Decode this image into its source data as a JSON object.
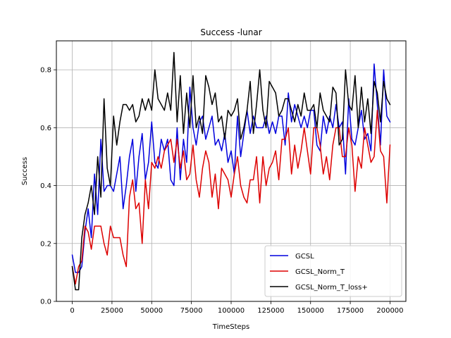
{
  "chart_data": {
    "type": "line",
    "title": "Success -lunar",
    "xlabel": "TimeSteps",
    "ylabel": "Success",
    "xlim": [
      -10000,
      210000
    ],
    "ylim": [
      0.0,
      0.9
    ],
    "xticks": [
      0,
      25000,
      50000,
      75000,
      100000,
      125000,
      150000,
      175000,
      200000
    ],
    "xtick_labels": [
      "0",
      "25000",
      "50000",
      "75000",
      "100000",
      "125000",
      "150000",
      "175000",
      "200000"
    ],
    "yticks": [
      0.0,
      0.2,
      0.4,
      0.6,
      0.8
    ],
    "ytick_labels": [
      "0.0",
      "0.2",
      "0.4",
      "0.6",
      "0.8"
    ],
    "grid": true,
    "legend_position": "lower-right",
    "x": [
      0,
      2000,
      4000,
      6000,
      8000,
      10000,
      12000,
      14000,
      16000,
      18000,
      20000,
      22000,
      24000,
      26000,
      28000,
      30000,
      32000,
      34000,
      36000,
      38000,
      40000,
      42000,
      44000,
      46000,
      48000,
      50000,
      52000,
      54000,
      56000,
      58000,
      60000,
      62000,
      64000,
      66000,
      68000,
      70000,
      72000,
      74000,
      76000,
      78000,
      80000,
      82000,
      84000,
      86000,
      88000,
      90000,
      92000,
      94000,
      96000,
      98000,
      100000,
      102000,
      104000,
      106000,
      108000,
      110000,
      112000,
      114000,
      116000,
      118000,
      120000,
      122000,
      124000,
      126000,
      128000,
      130000,
      132000,
      134000,
      136000,
      138000,
      140000,
      142000,
      144000,
      146000,
      148000,
      150000,
      152000,
      154000,
      156000,
      158000,
      160000,
      162000,
      164000,
      166000,
      168000,
      170000,
      172000,
      174000,
      176000,
      178000,
      180000,
      182000,
      184000,
      186000,
      188000,
      190000,
      192000,
      194000,
      196000,
      198000,
      200000
    ],
    "series": [
      {
        "name": "GCSL",
        "color": "#0000dd",
        "values": [
          0.16,
          0.1,
          0.1,
          0.12,
          0.24,
          0.32,
          0.22,
          0.44,
          0.3,
          0.56,
          0.38,
          0.4,
          0.4,
          0.38,
          0.44,
          0.5,
          0.32,
          0.4,
          0.5,
          0.56,
          0.38,
          0.5,
          0.58,
          0.42,
          0.48,
          0.62,
          0.48,
          0.46,
          0.56,
          0.52,
          0.56,
          0.42,
          0.4,
          0.6,
          0.42,
          0.56,
          0.48,
          0.74,
          0.6,
          0.54,
          0.62,
          0.64,
          0.56,
          0.6,
          0.64,
          0.54,
          0.56,
          0.52,
          0.58,
          0.48,
          0.52,
          0.44,
          0.64,
          0.5,
          0.58,
          0.66,
          0.58,
          0.64,
          0.6,
          0.6,
          0.6,
          0.64,
          0.58,
          0.62,
          0.58,
          0.64,
          0.64,
          0.54,
          0.72,
          0.62,
          0.68,
          0.64,
          0.6,
          0.64,
          0.6,
          0.66,
          0.66,
          0.54,
          0.52,
          0.64,
          0.58,
          0.64,
          0.6,
          0.68,
          0.6,
          0.62,
          0.44,
          0.7,
          0.56,
          0.54,
          0.6,
          0.66,
          0.56,
          0.58,
          0.52,
          0.82,
          0.68,
          0.54,
          0.8,
          0.64,
          0.62
        ]
      },
      {
        "name": "GCSL_Norm_T",
        "color": "#dd0000",
        "values": [
          0.12,
          0.06,
          0.12,
          0.14,
          0.26,
          0.24,
          0.18,
          0.26,
          0.26,
          0.26,
          0.2,
          0.16,
          0.26,
          0.22,
          0.22,
          0.22,
          0.16,
          0.12,
          0.36,
          0.42,
          0.32,
          0.34,
          0.2,
          0.42,
          0.32,
          0.48,
          0.46,
          0.5,
          0.46,
          0.52,
          0.54,
          0.56,
          0.48,
          0.56,
          0.46,
          0.52,
          0.42,
          0.44,
          0.54,
          0.42,
          0.36,
          0.46,
          0.52,
          0.48,
          0.36,
          0.44,
          0.32,
          0.46,
          0.44,
          0.42,
          0.36,
          0.44,
          0.5,
          0.4,
          0.36,
          0.34,
          0.42,
          0.42,
          0.5,
          0.34,
          0.5,
          0.4,
          0.46,
          0.48,
          0.52,
          0.42,
          0.56,
          0.56,
          0.6,
          0.44,
          0.54,
          0.46,
          0.52,
          0.6,
          0.52,
          0.44,
          0.6,
          0.6,
          0.54,
          0.44,
          0.5,
          0.42,
          0.54,
          0.6,
          0.6,
          0.5,
          0.5,
          0.6,
          0.54,
          0.38,
          0.5,
          0.46,
          0.6,
          0.54,
          0.48,
          0.5,
          0.66,
          0.52,
          0.5,
          0.34,
          0.54
        ]
      },
      {
        "name": "GCSL_Norm_T_loss+",
        "color": "#000000",
        "values": [
          0.12,
          0.04,
          0.04,
          0.22,
          0.3,
          0.34,
          0.4,
          0.3,
          0.5,
          0.36,
          0.7,
          0.46,
          0.4,
          0.64,
          0.54,
          0.62,
          0.68,
          0.68,
          0.66,
          0.68,
          0.62,
          0.64,
          0.7,
          0.66,
          0.7,
          0.66,
          0.8,
          0.7,
          0.68,
          0.66,
          0.72,
          0.66,
          0.86,
          0.62,
          0.78,
          0.58,
          0.72,
          0.6,
          0.78,
          0.6,
          0.64,
          0.58,
          0.78,
          0.74,
          0.68,
          0.72,
          0.62,
          0.64,
          0.56,
          0.66,
          0.64,
          0.66,
          0.7,
          0.56,
          0.6,
          0.66,
          0.76,
          0.58,
          0.68,
          0.8,
          0.66,
          0.6,
          0.76,
          0.74,
          0.72,
          0.64,
          0.66,
          0.7,
          0.7,
          0.66,
          0.62,
          0.68,
          0.64,
          0.72,
          0.66,
          0.66,
          0.68,
          0.6,
          0.72,
          0.66,
          0.64,
          0.62,
          0.74,
          0.72,
          0.54,
          0.56,
          0.8,
          0.68,
          0.66,
          0.78,
          0.6,
          0.74,
          0.62,
          0.7,
          0.58,
          0.76,
          0.72,
          0.62,
          0.76,
          0.7,
          0.68
        ]
      }
    ]
  }
}
